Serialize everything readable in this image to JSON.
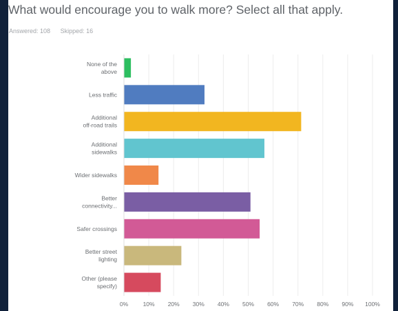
{
  "question": "What would encourage you to walk more?  Select all that apply.",
  "answered_label": "Answered: 108",
  "skipped_label": "Skipped: 16",
  "chart_data": {
    "type": "bar",
    "orientation": "horizontal",
    "categories": [
      [
        "None of the",
        "above"
      ],
      [
        "Less traffic"
      ],
      [
        "Additional",
        "off-road trails"
      ],
      [
        "Additional",
        "sidewalks"
      ],
      [
        "Wider sidewalks"
      ],
      [
        "Better",
        "connectivity..."
      ],
      [
        "Safer crossings"
      ],
      [
        "Better street",
        "lighting"
      ],
      [
        "Other (please",
        "specify)"
      ]
    ],
    "values": [
      2.8,
      32.4,
      71.3,
      56.5,
      13.9,
      50.9,
      54.6,
      23.1,
      14.8
    ],
    "colors": [
      "#2dbe60",
      "#507cc0",
      "#f2b620",
      "#61c5cf",
      "#f08849",
      "#7a5ea4",
      "#d25a96",
      "#c9b87c",
      "#d64a5e"
    ],
    "xlim": [
      0,
      100
    ],
    "xticks": [
      "0%",
      "10%",
      "20%",
      "30%",
      "40%",
      "50%",
      "60%",
      "70%",
      "80%",
      "90%",
      "100%"
    ],
    "grid": true
  }
}
